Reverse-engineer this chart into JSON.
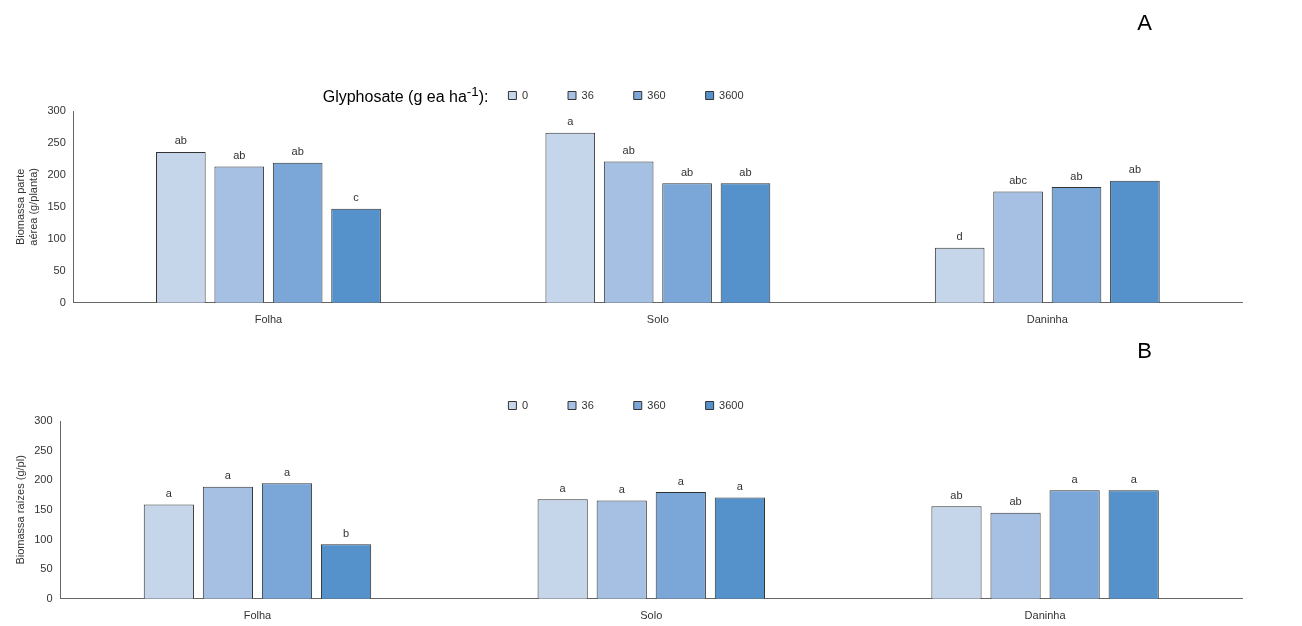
{
  "chart_data": [
    {
      "type": "bar",
      "ylabel": "Biomassa parte aérea (g/planta)",
      "legend_title": "Glyphosate (g ea ha$^{-1}$):",
      "legend": "top",
      "annotations": [
        "A"
      ],
      "categories": [
        "Folha",
        "Solo",
        "Daninha"
      ],
      "ylim": [
        0,
        300
      ],
      "yticks": [
        0,
        50,
        100,
        150,
        200,
        250,
        300
      ],
      "series": [
        {
          "name": "0",
          "color": "#c5d5ea",
          "values": [
            236,
            266,
            86
          ],
          "value_labels": [
            "ab",
            "a",
            "d"
          ]
        },
        {
          "name": "36",
          "color": "#a6c0e4",
          "values": [
            213,
            221,
            174
          ],
          "value_labels": [
            "ab",
            "ab",
            "abc"
          ]
        },
        {
          "name": "360",
          "color": "#7ba7d8",
          "values": [
            219,
            187,
            181
          ],
          "value_labels": [
            "ab",
            "ab",
            "ab"
          ]
        },
        {
          "name": "3600",
          "color": "#5592cb",
          "values": [
            147,
            187,
            191
          ],
          "value_labels": [
            "c",
            "ab",
            "ab"
          ]
        }
      ]
    },
    {
      "type": "bar",
      "ylabel": "Biomassa raízes (g/pl)",
      "legend": "top",
      "annotations": [
        "B"
      ],
      "categories": [
        "Folha",
        "Solo",
        "Daninha"
      ],
      "ylim": [
        0,
        300
      ],
      "yticks": [
        0,
        50,
        100,
        150,
        200,
        250,
        300
      ],
      "series": [
        {
          "name": "0",
          "color": "#c5d5ea",
          "values": [
            159,
            168,
            156
          ],
          "value_labels": [
            "a",
            "a",
            "ab"
          ]
        },
        {
          "name": "36",
          "color": "#a6c0e4",
          "values": [
            189,
            166,
            145
          ],
          "value_labels": [
            "a",
            "a",
            "ab"
          ]
        },
        {
          "name": "360",
          "color": "#7ba7d8",
          "values": [
            195,
            180,
            183
          ],
          "value_labels": [
            "a",
            "a",
            "a"
          ]
        },
        {
          "name": "3600",
          "color": "#5592cb",
          "values": [
            92,
            171,
            183
          ],
          "value_labels": [
            "b",
            "a",
            "a"
          ]
        }
      ]
    }
  ]
}
